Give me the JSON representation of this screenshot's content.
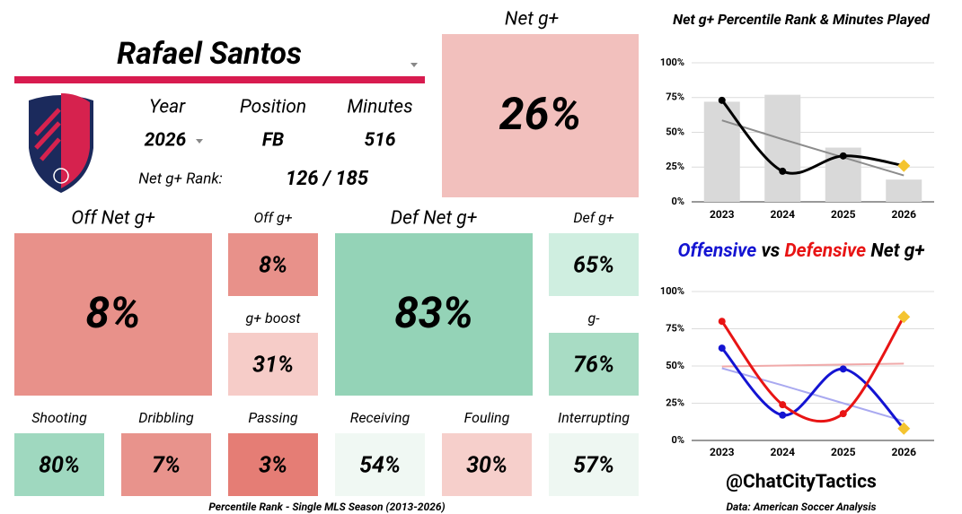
{
  "header": {
    "player": "Rafael Santos",
    "year_label": "Year",
    "position_label": "Position",
    "minutes_label": "Minutes",
    "year": "2026",
    "position": "FB",
    "minutes": "516",
    "rank_label": "Net g+ Rank:",
    "rank": "126 / 185"
  },
  "tiles": [
    {
      "label": "Net g+",
      "value": "26%",
      "color": "#f2c0bd"
    },
    {
      "label": "Off Net g+",
      "value": "8%",
      "color": "#e8918a"
    },
    {
      "label": "Off g+",
      "value": "8%",
      "color": "#e8918a"
    },
    {
      "label": "g+ boost",
      "value": "31%",
      "color": "#f6ccc8"
    },
    {
      "label": "Def Net g+",
      "value": "83%",
      "color": "#94d3b7"
    },
    {
      "label": "Def g+",
      "value": "65%",
      "color": "#cfeee0"
    },
    {
      "label": "g-",
      "value": "76%",
      "color": "#a8dcc4"
    },
    {
      "label": "Shooting",
      "value": "80%",
      "color": "#9fd8bf"
    },
    {
      "label": "Dribbling",
      "value": "7%",
      "color": "#e8938c"
    },
    {
      "label": "Passing",
      "value": "3%",
      "color": "#e57d75"
    },
    {
      "label": "Receiving",
      "value": "54%",
      "color": "#f0f8f3"
    },
    {
      "label": "Fouling",
      "value": "30%",
      "color": "#f6cfcb"
    },
    {
      "label": "Interrupting",
      "value": "57%",
      "color": "#eef7f2"
    }
  ],
  "footer": {
    "note": "Percentile Rank - Single MLS Season (2013-2026)",
    "handle": "@ChatCityTactics",
    "source": "Data: American Soccer Analysis"
  },
  "chart_data": [
    {
      "type": "combo",
      "title": "Net g+ Percentile Rank & Minutes Played",
      "categories": [
        "2023",
        "2024",
        "2025",
        "2026"
      ],
      "series": [
        {
          "type": "bar",
          "color": "#d9d9d9",
          "values": [
            72,
            77,
            39,
            16
          ]
        },
        {
          "type": "trend",
          "color": "#8c8c8c",
          "values": [
            58.6,
            45,
            32,
            19
          ]
        },
        {
          "type": "line",
          "color": "#000000",
          "values": [
            73,
            22,
            33,
            26
          ]
        }
      ],
      "ylim": [
        0,
        100
      ],
      "yticks": [
        {
          "value": 0,
          "label": "0%"
        },
        {
          "value": 25,
          "label": "25%"
        },
        {
          "value": 50,
          "label": "50%"
        },
        {
          "value": 75,
          "label": "75%"
        },
        {
          "value": 100,
          "label": "100%"
        }
      ],
      "grid": true,
      "last_point_color": "#f4c430"
    },
    {
      "type": "combo",
      "title_parts": [
        "vs",
        "Net g+"
      ],
      "categories": [
        "2023",
        "2024",
        "2025",
        "2026"
      ],
      "series": [
        {
          "name": "Offensive",
          "type": "line",
          "color": "#1414d2",
          "values": [
            62,
            17,
            48,
            8
          ]
        },
        {
          "name": "Defensive",
          "type": "line",
          "color": "#e81414",
          "values": [
            80,
            24,
            18,
            83
          ]
        },
        {
          "type": "trend",
          "color": "#a9a9f0",
          "values": [
            48.5,
            37,
            25,
            13
          ]
        },
        {
          "type": "trend",
          "color": "#f0a9a9",
          "values": [
            49.7,
            50.3,
            51,
            51.6
          ]
        }
      ],
      "ylim": [
        0,
        100
      ],
      "yticks": [
        {
          "value": 0,
          "label": "0%"
        },
        {
          "value": 25,
          "label": "25%"
        },
        {
          "value": 50,
          "label": "50%"
        },
        {
          "value": 75,
          "label": "75%"
        },
        {
          "value": 100,
          "label": "100%"
        }
      ],
      "grid": true,
      "last_point_color": "#f4c430"
    }
  ]
}
